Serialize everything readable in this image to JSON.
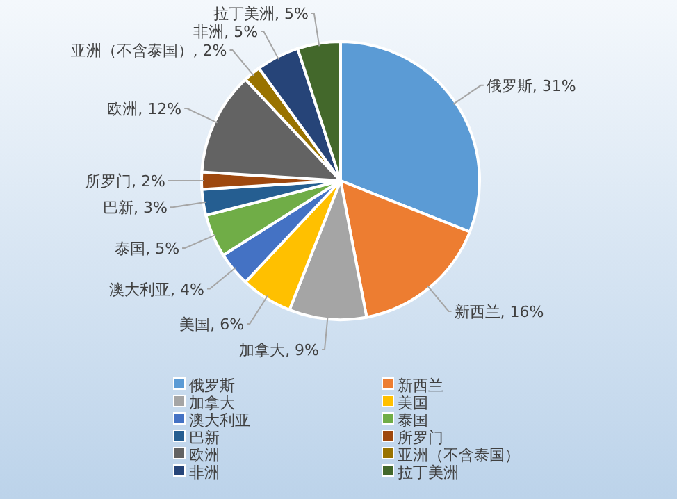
{
  "chart_data": {
    "type": "pie",
    "categories": [
      "俄罗斯",
      "新西兰",
      "加拿大",
      "美国",
      "澳大利亚",
      "泰国",
      "巴新",
      "所罗门",
      "欧洲",
      "亚洲（不含泰国）",
      "非洲",
      "拉丁美洲"
    ],
    "values": [
      31,
      16,
      9,
      6,
      4,
      5,
      3,
      2,
      12,
      2,
      5,
      5
    ],
    "value_labels": [
      "俄罗斯, 31%",
      "新西兰, 16%",
      "加拿大, 9%",
      "美国, 6%",
      "澳大利亚, 4%",
      "泰国, 5%",
      "巴新, 3%",
      "所罗门, 2%",
      "欧洲, 12%",
      "亚洲（不含泰国）, 2%",
      "非洲, 5%",
      "拉丁美洲, 5%"
    ],
    "colors": [
      "#5b9bd5",
      "#ed7d31",
      "#a5a5a5",
      "#ffc000",
      "#4472c4",
      "#70ad47",
      "#255e91",
      "#9e480e",
      "#636363",
      "#997300",
      "#264478",
      "#43682b"
    ],
    "legend": "bottom"
  }
}
